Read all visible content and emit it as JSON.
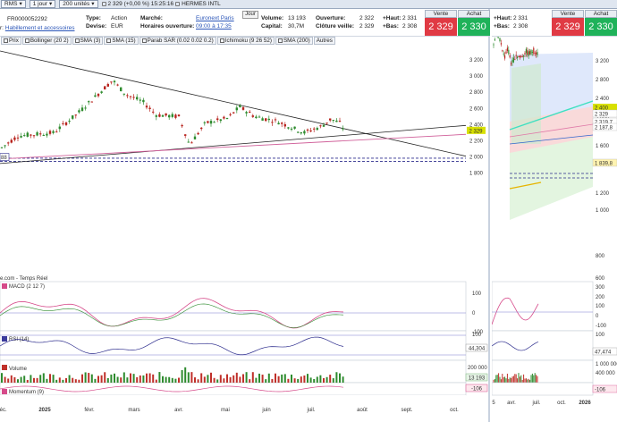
{
  "topbar": {
    "symbol": "RMS",
    "period": "1 jour",
    "units": "200 unités",
    "quote": "2 329 (+0,00 %) 15:25:16",
    "name": "HERMES INTL"
  },
  "info": {
    "isin": "FR0000052292",
    "sector_prefix": "r:",
    "sector": "Habillement et accessoires",
    "type_label": "Type:",
    "type_value": "Action",
    "devise_label": "Devise:",
    "devise_value": "EUR",
    "marche_label": "Marché:",
    "marche_value": "Euronext Paris",
    "horaires_label": "Horaires ouverture:",
    "horaires_value": "09:00 à 17:35",
    "jour": "Jour",
    "volume_label": "Volume:",
    "volume_value": "13 193",
    "capital_label": "Capital:",
    "capital_value": "30,7M",
    "ouverture_label": "Ouverture:",
    "ouverture_value": "2 322",
    "cloture_label": "Clôture veille:",
    "cloture_value": "2 329",
    "haut_label": "+Haut:",
    "haut_value": "2 331",
    "bas_label": "+Bas:",
    "bas_value": "2 308",
    "vente_label": "Vente",
    "vente_value": "2 329",
    "achat_label": "Achat",
    "achat_value": "2 330"
  },
  "right_info": {
    "haut_label": "+Haut:",
    "haut_value": "2 331",
    "bas_label": "+Bas:",
    "bas_value": "2 308",
    "vente_label": "Vente",
    "vente_value": "2 329",
    "achat_label": "Achat",
    "achat_value": "2 330"
  },
  "tabs": [
    "Prix",
    "Bollinger (20 2)",
    "SMA (3)",
    "SMA (15)",
    "Parab SAR (0.02 0.02 0.2)",
    "Ichimoku (9 26 52)",
    "SMA (200)",
    "Autres"
  ],
  "main_axis": {
    "ticks": [
      "3 200",
      "3 000",
      "2 800",
      "2 600",
      "2 400",
      "2 200",
      "2 000",
      "1 800"
    ],
    "price_tag": "2 329",
    "left_tag": "88"
  },
  "right_axis": {
    "ticks": [
      "3 200",
      "2 800",
      "2 400",
      "2 000",
      "1 600",
      "1 200",
      "1 000",
      "800",
      "600"
    ],
    "tags": [
      "2 400",
      "2 329",
      "2 319,7",
      "2 187,8",
      "1 839,8"
    ]
  },
  "source": "e.com - Temps Réel",
  "indicators": {
    "macd": {
      "label": "MACD (2 12 7)",
      "ticks": [
        "100",
        "0",
        "-100"
      ]
    },
    "rsi": {
      "label": "RSI (14)",
      "tag": "44,304",
      "right_tag": "47,474",
      "ticks": [
        "100"
      ]
    },
    "volume": {
      "label": "Volume",
      "ticks": [
        "200 000"
      ],
      "tag": "13 193"
    },
    "momentum": {
      "label": "Momentum (9)",
      "tag": "-106",
      "right_tag": "-106"
    }
  },
  "right_macd_ticks": [
    "300",
    "200",
    "100",
    "0",
    "-100"
  ],
  "right_rsi_ticks": [
    "100"
  ],
  "right_vol_ticks": [
    "1 000 000",
    "400 000"
  ],
  "x_labels": [
    "déc.",
    "2025",
    "févr.",
    "mars",
    "avr.",
    "mai",
    "juin",
    "juil.",
    "août",
    "sept.",
    "oct."
  ],
  "right_x_labels": [
    "5",
    "avr.",
    "juil.",
    "oct.",
    "2026"
  ],
  "colors": {
    "up": "#2e8b2e",
    "down": "#b8241e",
    "price_tag": "#d8e000",
    "bid": "#e03a44",
    "ask": "#1fb25a"
  }
}
